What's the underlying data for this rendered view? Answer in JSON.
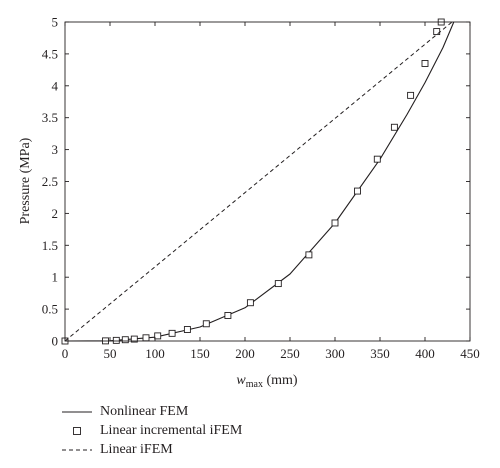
{
  "chart_data": {
    "type": "line",
    "xlabel": "w",
    "xlabel_sub": "max",
    "xlabel_unit": " (mm)",
    "ylabel": "Pressure (MPa)",
    "xlim": [
      0,
      450
    ],
    "ylim": [
      0,
      5
    ],
    "xticks": [
      "0",
      "50",
      "100",
      "150",
      "200",
      "250",
      "300",
      "350",
      "400",
      "450"
    ],
    "yticks": [
      "0",
      "0.5",
      "1",
      "1.5",
      "2",
      "2.5",
      "3",
      "3.5",
      "4",
      "4.5",
      "5"
    ],
    "grid": false,
    "legend_position": "below",
    "series": [
      {
        "name": "Nonlinear FEM",
        "style": "solid-line",
        "points": [
          [
            0,
            0
          ],
          [
            50,
            0.003
          ],
          [
            100,
            0.06
          ],
          [
            150,
            0.22
          ],
          [
            200,
            0.52
          ],
          [
            250,
            1.05
          ],
          [
            300,
            1.85
          ],
          [
            350,
            2.85
          ],
          [
            380,
            3.55
          ],
          [
            400,
            4.05
          ],
          [
            420,
            4.6
          ],
          [
            432,
            5.0
          ]
        ]
      },
      {
        "name": "Linear incremental iFEM",
        "style": "square-markers",
        "points": [
          [
            0,
            0
          ],
          [
            45,
            0.002
          ],
          [
            57,
            0.01
          ],
          [
            67,
            0.02
          ],
          [
            77,
            0.03
          ],
          [
            90,
            0.05
          ],
          [
            103,
            0.08
          ],
          [
            119,
            0.12
          ],
          [
            136,
            0.18
          ],
          [
            157,
            0.27
          ],
          [
            181,
            0.4
          ],
          [
            206,
            0.6
          ],
          [
            237,
            0.9
          ],
          [
            271,
            1.35
          ],
          [
            300,
            1.85
          ],
          [
            325,
            2.35
          ],
          [
            347,
            2.85
          ],
          [
            366,
            3.35
          ],
          [
            384,
            3.85
          ],
          [
            400,
            4.35
          ],
          [
            413,
            4.85
          ],
          [
            418,
            5.0
          ]
        ]
      },
      {
        "name": "Linear iFEM",
        "style": "dashed-line",
        "points": [
          [
            0,
            0
          ],
          [
            430,
            5.0
          ]
        ]
      }
    ]
  }
}
